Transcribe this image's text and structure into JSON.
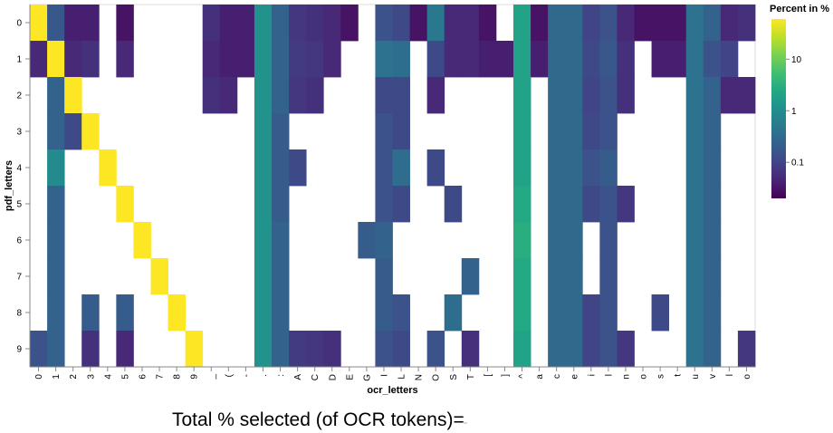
{
  "chart_data": {
    "type": "heatmap",
    "x_title": "ocr_letters",
    "y_title": "pdf_letters",
    "x_categories": [
      "0",
      "1",
      "2",
      "3",
      "4",
      "5",
      "6",
      "7",
      "8",
      "9",
      "_",
      "(",
      "-",
      ".",
      ":",
      "A",
      "C",
      "D",
      "E",
      "G",
      "I",
      "L",
      "N",
      "O",
      "S",
      "T",
      "[",
      "]",
      "^",
      "a",
      "c",
      "e",
      "i",
      "l",
      "n",
      "o",
      "s",
      "t",
      "u",
      "v",
      "l",
      "o"
    ],
    "y_categories": [
      "0",
      "1",
      "2",
      "3",
      "4",
      "5",
      "6",
      "7",
      "8",
      "9"
    ],
    "legend": {
      "title": "Percent in %",
      "scale": "log",
      "ticks": [
        "10",
        "1",
        "0.1"
      ],
      "tick_values": [
        10,
        1,
        0.1
      ],
      "domain": [
        0.02,
        60
      ],
      "position": "top-right"
    },
    "colors": {
      "viridis": [
        "#440154",
        "#482475",
        "#414487",
        "#355f8d",
        "#2a788e",
        "#21908d",
        "#22a884",
        "#42be71",
        "#7ad151",
        "#bddf26",
        "#fde725"
      ],
      "diagonal": "#fde725"
    },
    "cells": [
      {
        "y": "0",
        "x": "0",
        "v": 60
      },
      {
        "y": "0",
        "x": "1",
        "v": 0.18
      },
      {
        "y": "0",
        "x": "2",
        "v": 0.04
      },
      {
        "y": "0",
        "x": "3",
        "v": 0.04
      },
      {
        "y": "0",
        "x": "5",
        "v": 0.03
      },
      {
        "y": "0",
        "x": "_",
        "v": 0.06
      },
      {
        "y": "0",
        "x": "(",
        "v": 0.04
      },
      {
        "y": "0",
        "x": "-",
        "v": 0.04
      },
      {
        "y": "0",
        "x": ".",
        "v": 1.2
      },
      {
        "y": "0",
        "x": ":",
        "v": 0.25
      },
      {
        "y": "0",
        "x": "A",
        "v": 0.07
      },
      {
        "y": "0",
        "x": "C",
        "v": 0.06
      },
      {
        "y": "0",
        "x": "D",
        "v": 0.05
      },
      {
        "y": "0",
        "x": "E",
        "v": 0.03
      },
      {
        "y": "0",
        "x": "I",
        "v": 0.15
      },
      {
        "y": "0",
        "x": "L",
        "v": 0.12
      },
      {
        "y": "0",
        "x": "N",
        "v": 0.03
      },
      {
        "y": "0",
        "x": "O",
        "v": 0.5
      },
      {
        "y": "0",
        "x": "S",
        "v": 0.05
      },
      {
        "y": "0",
        "x": "T",
        "v": 0.05
      },
      {
        "y": "0",
        "x": "[",
        "v": 0.03
      },
      {
        "y": "0",
        "x": "^",
        "v": 2.0
      },
      {
        "y": "0",
        "x": "a",
        "v": 0.03
      },
      {
        "y": "0",
        "x": "c",
        "v": 0.3
      },
      {
        "y": "0",
        "x": "e",
        "v": 0.3
      },
      {
        "y": "0",
        "x": "i",
        "v": 0.1
      },
      {
        "y": "0",
        "x": "l",
        "v": 0.15
      },
      {
        "y": "0",
        "x": "n",
        "v": 0.05
      },
      {
        "y": "0",
        "x": "o",
        "v": 0.03
      },
      {
        "y": "0",
        "x": "s",
        "v": 0.03
      },
      {
        "y": "0",
        "x": "t",
        "v": 0.03
      },
      {
        "y": "0",
        "x": "u",
        "v": 0.4
      },
      {
        "y": "0",
        "x": "v",
        "v": 0.25
      },
      {
        "y": "0",
        "x": "l ",
        "v": 0.05
      },
      {
        "y": "0",
        "x": "o ",
        "v": 0.06
      },
      {
        "y": "1",
        "x": "0",
        "v": 0.05
      },
      {
        "y": "1",
        "x": "1",
        "v": 60
      },
      {
        "y": "1",
        "x": "2",
        "v": 0.05
      },
      {
        "y": "1",
        "x": "3",
        "v": 0.06
      },
      {
        "y": "1",
        "x": "5",
        "v": 0.05
      },
      {
        "y": "1",
        "x": "_",
        "v": 0.05
      },
      {
        "y": "1",
        "x": "(",
        "v": 0.04
      },
      {
        "y": "1",
        "x": "-",
        "v": 0.04
      },
      {
        "y": "1",
        "x": ".",
        "v": 1.2
      },
      {
        "y": "1",
        "x": ":",
        "v": 0.25
      },
      {
        "y": "1",
        "x": "A",
        "v": 0.08
      },
      {
        "y": "1",
        "x": "C",
        "v": 0.07
      },
      {
        "y": "1",
        "x": "D",
        "v": 0.05
      },
      {
        "y": "1",
        "x": "I",
        "v": 0.4
      },
      {
        "y": "1",
        "x": "L",
        "v": 0.35
      },
      {
        "y": "1",
        "x": "O",
        "v": 0.12
      },
      {
        "y": "1",
        "x": "S",
        "v": 0.05
      },
      {
        "y": "1",
        "x": "T",
        "v": 0.05
      },
      {
        "y": "1",
        "x": "[",
        "v": 0.04
      },
      {
        "y": "1",
        "x": "]",
        "v": 0.04
      },
      {
        "y": "1",
        "x": "^",
        "v": 2.0
      },
      {
        "y": "1",
        "x": "a",
        "v": 0.04
      },
      {
        "y": "1",
        "x": "c",
        "v": 0.3
      },
      {
        "y": "1",
        "x": "e",
        "v": 0.3
      },
      {
        "y": "1",
        "x": "i",
        "v": 0.12
      },
      {
        "y": "1",
        "x": "l",
        "v": 0.18
      },
      {
        "y": "1",
        "x": "n",
        "v": 0.06
      },
      {
        "y": "1",
        "x": "s",
        "v": 0.04
      },
      {
        "y": "1",
        "x": "t",
        "v": 0.04
      },
      {
        "y": "1",
        "x": "u",
        "v": 0.4
      },
      {
        "y": "1",
        "x": "v",
        "v": 0.15
      },
      {
        "y": "1",
        "x": "l ",
        "v": 0.1
      },
      {
        "y": "2",
        "x": "1",
        "v": 0.25
      },
      {
        "y": "2",
        "x": "2",
        "v": 60
      },
      {
        "y": "2",
        "x": "_",
        "v": 0.06
      },
      {
        "y": "2",
        "x": "(",
        "v": 0.05
      },
      {
        "y": "2",
        "x": ".",
        "v": 1.2
      },
      {
        "y": "2",
        "x": ":",
        "v": 0.25
      },
      {
        "y": "2",
        "x": "A",
        "v": 0.07
      },
      {
        "y": "2",
        "x": "C",
        "v": 0.06
      },
      {
        "y": "2",
        "x": "I",
        "v": 0.12
      },
      {
        "y": "2",
        "x": "L",
        "v": 0.12
      },
      {
        "y": "2",
        "x": "O",
        "v": 0.05
      },
      {
        "y": "2",
        "x": "^",
        "v": 2.0
      },
      {
        "y": "2",
        "x": "c",
        "v": 0.3
      },
      {
        "y": "2",
        "x": "e",
        "v": 0.3
      },
      {
        "y": "2",
        "x": "i",
        "v": 0.1
      },
      {
        "y": "2",
        "x": "l",
        "v": 0.15
      },
      {
        "y": "2",
        "x": "n",
        "v": 0.06
      },
      {
        "y": "2",
        "x": "u",
        "v": 0.4
      },
      {
        "y": "2",
        "x": "v",
        "v": 0.25
      },
      {
        "y": "2",
        "x": "l ",
        "v": 0.05
      },
      {
        "y": "2",
        "x": "o ",
        "v": 0.05
      },
      {
        "y": "3",
        "x": "1",
        "v": 0.25
      },
      {
        "y": "3",
        "x": "2",
        "v": 0.12
      },
      {
        "y": "3",
        "x": "3",
        "v": 60
      },
      {
        "y": "3",
        "x": ".",
        "v": 1.2
      },
      {
        "y": "3",
        "x": ":",
        "v": 0.2
      },
      {
        "y": "3",
        "x": "I",
        "v": 0.15
      },
      {
        "y": "3",
        "x": "L",
        "v": 0.12
      },
      {
        "y": "3",
        "x": "^",
        "v": 2.0
      },
      {
        "y": "3",
        "x": "c",
        "v": 0.3
      },
      {
        "y": "3",
        "x": "e",
        "v": 0.3
      },
      {
        "y": "3",
        "x": "i",
        "v": 0.12
      },
      {
        "y": "3",
        "x": "l",
        "v": 0.15
      },
      {
        "y": "3",
        "x": "u",
        "v": 0.4
      },
      {
        "y": "3",
        "x": "v",
        "v": 0.25
      },
      {
        "y": "4",
        "x": "1",
        "v": 0.9
      },
      {
        "y": "4",
        "x": "4",
        "v": 60
      },
      {
        "y": "4",
        "x": ".",
        "v": 1.2
      },
      {
        "y": "4",
        "x": ":",
        "v": 0.2
      },
      {
        "y": "4",
        "x": "A",
        "v": 0.12
      },
      {
        "y": "4",
        "x": "I",
        "v": 0.15
      },
      {
        "y": "4",
        "x": "L",
        "v": 0.35
      },
      {
        "y": "4",
        "x": "O",
        "v": 0.12
      },
      {
        "y": "4",
        "x": "^",
        "v": 2.0
      },
      {
        "y": "4",
        "x": "c",
        "v": 0.3
      },
      {
        "y": "4",
        "x": "e",
        "v": 0.3
      },
      {
        "y": "4",
        "x": "i",
        "v": 0.15
      },
      {
        "y": "4",
        "x": "l",
        "v": 0.2
      },
      {
        "y": "4",
        "x": "u",
        "v": 0.4
      },
      {
        "y": "4",
        "x": "v",
        "v": 0.25
      },
      {
        "y": "5",
        "x": "1",
        "v": 0.25
      },
      {
        "y": "5",
        "x": "5",
        "v": 60
      },
      {
        "y": "5",
        "x": ".",
        "v": 1.2
      },
      {
        "y": "5",
        "x": ":",
        "v": 0.2
      },
      {
        "y": "5",
        "x": "I",
        "v": 0.15
      },
      {
        "y": "5",
        "x": "L",
        "v": 0.12
      },
      {
        "y": "5",
        "x": "S",
        "v": 0.12
      },
      {
        "y": "5",
        "x": "^",
        "v": 2.5
      },
      {
        "y": "5",
        "x": "c",
        "v": 0.3
      },
      {
        "y": "5",
        "x": "e",
        "v": 0.3
      },
      {
        "y": "5",
        "x": "i",
        "v": 0.12
      },
      {
        "y": "5",
        "x": "l",
        "v": 0.15
      },
      {
        "y": "5",
        "x": "n",
        "v": 0.07
      },
      {
        "y": "5",
        "x": "u",
        "v": 0.4
      },
      {
        "y": "5",
        "x": "v",
        "v": 0.25
      },
      {
        "y": "6",
        "x": "1",
        "v": 0.25
      },
      {
        "y": "6",
        "x": "6",
        "v": 60
      },
      {
        "y": "6",
        "x": ".",
        "v": 1.2
      },
      {
        "y": "6",
        "x": ":",
        "v": 0.25
      },
      {
        "y": "6",
        "x": "G",
        "v": 0.2
      },
      {
        "y": "6",
        "x": "I",
        "v": 0.25
      },
      {
        "y": "6",
        "x": "^",
        "v": 3.0
      },
      {
        "y": "6",
        "x": "c",
        "v": 0.3
      },
      {
        "y": "6",
        "x": "e",
        "v": 0.3
      },
      {
        "y": "6",
        "x": "l",
        "v": 0.15
      },
      {
        "y": "6",
        "x": "u",
        "v": 0.4
      },
      {
        "y": "6",
        "x": "v",
        "v": 0.25
      },
      {
        "y": "7",
        "x": "1",
        "v": 0.25
      },
      {
        "y": "7",
        "x": "7",
        "v": 60
      },
      {
        "y": "7",
        "x": ".",
        "v": 1.2
      },
      {
        "y": "7",
        "x": ":",
        "v": 0.25
      },
      {
        "y": "7",
        "x": "I",
        "v": 0.2
      },
      {
        "y": "7",
        "x": "T",
        "v": 0.25
      },
      {
        "y": "7",
        "x": "^",
        "v": 2.5
      },
      {
        "y": "7",
        "x": "c",
        "v": 0.3
      },
      {
        "y": "7",
        "x": "e",
        "v": 0.3
      },
      {
        "y": "7",
        "x": "l",
        "v": 0.15
      },
      {
        "y": "7",
        "x": "u",
        "v": 0.4
      },
      {
        "y": "7",
        "x": "v",
        "v": 0.25
      },
      {
        "y": "8",
        "x": "1",
        "v": 0.25
      },
      {
        "y": "8",
        "x": "3",
        "v": 0.2
      },
      {
        "y": "8",
        "x": "5",
        "v": 0.2
      },
      {
        "y": "8",
        "x": "8",
        "v": 60
      },
      {
        "y": "8",
        "x": ".",
        "v": 1.2
      },
      {
        "y": "8",
        "x": ":",
        "v": 0.25
      },
      {
        "y": "8",
        "x": "I",
        "v": 0.2
      },
      {
        "y": "8",
        "x": "L",
        "v": 0.15
      },
      {
        "y": "8",
        "x": "S",
        "v": 0.35
      },
      {
        "y": "8",
        "x": "^",
        "v": 2.5
      },
      {
        "y": "8",
        "x": "c",
        "v": 0.3
      },
      {
        "y": "8",
        "x": "e",
        "v": 0.3
      },
      {
        "y": "8",
        "x": "i",
        "v": 0.1
      },
      {
        "y": "8",
        "x": "l",
        "v": 0.15
      },
      {
        "y": "8",
        "x": "s",
        "v": 0.12
      },
      {
        "y": "8",
        "x": "u",
        "v": 0.4
      },
      {
        "y": "8",
        "x": "v",
        "v": 0.25
      },
      {
        "y": "9",
        "x": "0",
        "v": 0.15
      },
      {
        "y": "9",
        "x": "1",
        "v": 0.25
      },
      {
        "y": "9",
        "x": "3",
        "v": 0.06
      },
      {
        "y": "9",
        "x": "5",
        "v": 0.05
      },
      {
        "y": "9",
        "x": "9",
        "v": 60
      },
      {
        "y": "9",
        "x": ".",
        "v": 1.2
      },
      {
        "y": "9",
        "x": ":",
        "v": 0.25
      },
      {
        "y": "9",
        "x": "A",
        "v": 0.08
      },
      {
        "y": "9",
        "x": "C",
        "v": 0.07
      },
      {
        "y": "9",
        "x": "D",
        "v": 0.06
      },
      {
        "y": "9",
        "x": "I",
        "v": 0.15
      },
      {
        "y": "9",
        "x": "L",
        "v": 0.12
      },
      {
        "y": "9",
        "x": "O",
        "v": 0.15
      },
      {
        "y": "9",
        "x": "T",
        "v": 0.06
      },
      {
        "y": "9",
        "x": "^",
        "v": 2.0
      },
      {
        "y": "9",
        "x": "c",
        "v": 0.3
      },
      {
        "y": "9",
        "x": "e",
        "v": 0.3
      },
      {
        "y": "9",
        "x": "i",
        "v": 0.1
      },
      {
        "y": "9",
        "x": "l",
        "v": 0.15
      },
      {
        "y": "9",
        "x": "n",
        "v": 0.07
      },
      {
        "y": "9",
        "x": "u",
        "v": 0.4
      },
      {
        "y": "9",
        "x": "v",
        "v": 0.25
      },
      {
        "y": "9",
        "x": "o ",
        "v": 0.07
      }
    ]
  },
  "footer": {
    "label": "Total % selected (of OCR tokens)=",
    "value": ""
  }
}
